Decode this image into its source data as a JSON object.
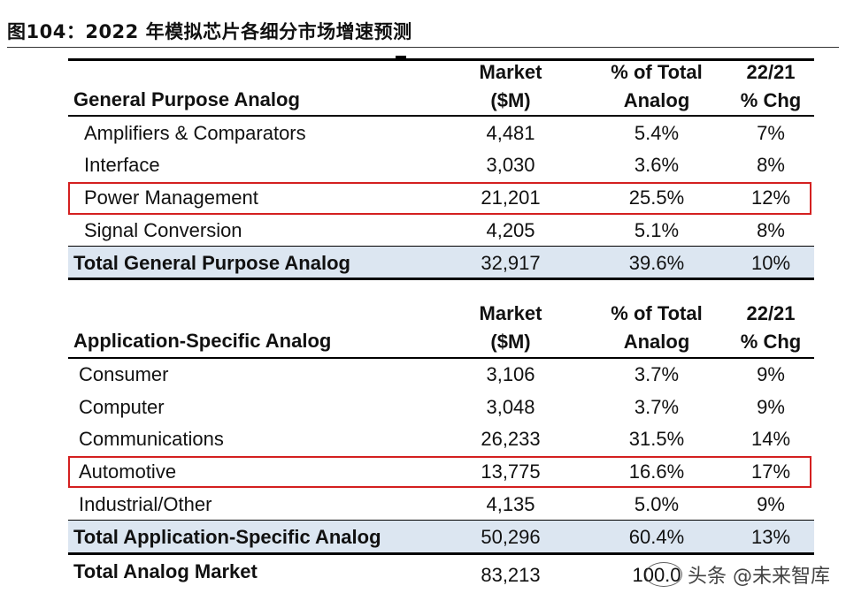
{
  "figure_title": "图104：2022 年模拟芯片各细分市场增速预测",
  "columns": {
    "market": [
      "Market",
      "($M)"
    ],
    "share": [
      "% of Total",
      "Analog"
    ],
    "chg": [
      "22/21",
      "% Chg"
    ]
  },
  "general": {
    "heading": "General Purpose Analog",
    "rows": [
      {
        "label": "Amplifiers & Comparators",
        "market": "4,481",
        "share": "5.4%",
        "chg": "7%"
      },
      {
        "label": "Interface",
        "market": "3,030",
        "share": "3.6%",
        "chg": "8%"
      },
      {
        "label": "Power Management",
        "market": "21,201",
        "share": "25.5%",
        "chg": "12%"
      },
      {
        "label": "Signal Conversion",
        "market": "4,205",
        "share": "5.1%",
        "chg": "8%"
      }
    ],
    "total": {
      "label": "Total General Purpose Analog",
      "market": "32,917",
      "share": "39.6%",
      "chg": "10%"
    }
  },
  "application": {
    "heading": "Application-Specific Analog",
    "rows": [
      {
        "label": "Consumer",
        "market": "3,106",
        "share": "3.7%",
        "chg": "9%"
      },
      {
        "label": "Computer",
        "market": "3,048",
        "share": "3.7%",
        "chg": "9%"
      },
      {
        "label": "Communications",
        "market": "26,233",
        "share": "31.5%",
        "chg": "14%"
      },
      {
        "label": "Automotive",
        "market": "13,775",
        "share": "16.6%",
        "chg": "17%"
      },
      {
        "label": "Industrial/Other",
        "market": "4,135",
        "share": "5.0%",
        "chg": "9%"
      }
    ],
    "total": {
      "label": "Total Application-Specific Analog",
      "market": "50,296",
      "share": "60.4%",
      "chg": "13%"
    }
  },
  "grand_total": {
    "label": "Total Analog Market",
    "market": "83,213",
    "share": "100.0"
  },
  "watermark": "头条 @未来智库",
  "colors": {
    "total_fill": "#dce6f1",
    "highlight_border": "#d42020"
  }
}
